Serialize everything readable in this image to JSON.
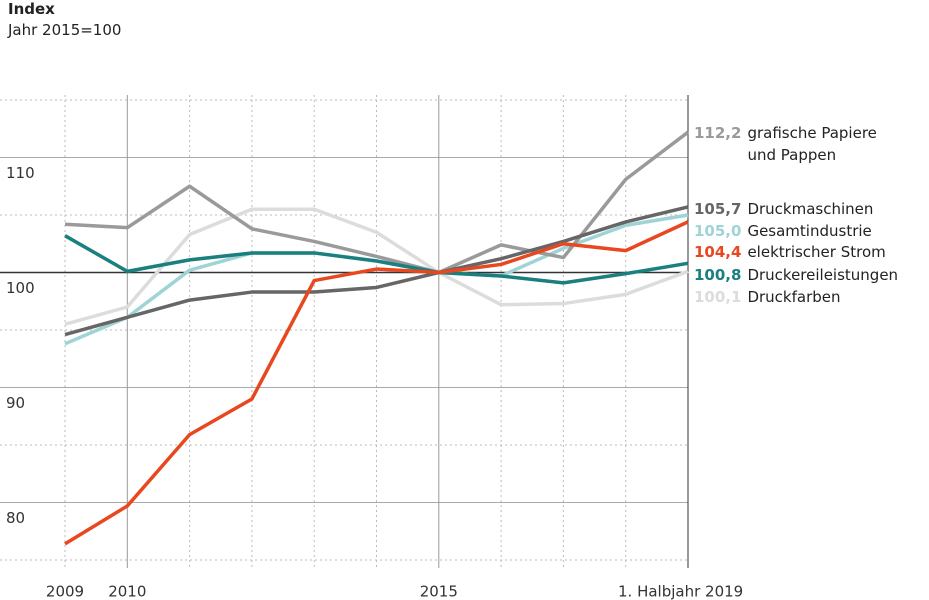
{
  "chart_data": {
    "type": "line",
    "title": "Index",
    "subtitle": "Jahr 2015=100",
    "categories": [
      "2009",
      "2010",
      null,
      null,
      null,
      null,
      "2015",
      null,
      null,
      null,
      "1. Halbjahr 2019"
    ],
    "ylim": [
      75,
      115
    ],
    "yticks": [
      80,
      90,
      100,
      110
    ],
    "yminor": [
      75,
      85,
      95,
      105,
      115
    ],
    "reference": 100,
    "series": [
      {
        "name": "grafische Papiere und Pappen",
        "color": "#9a9a9a",
        "values": [
          104.2,
          103.9,
          107.5,
          103.8,
          102.7,
          101.4,
          100,
          102.4,
          101.3,
          108.1,
          112.2
        ],
        "value_labels": [
          null,
          null,
          null,
          null,
          null,
          null,
          null,
          null,
          null,
          null,
          "112,2"
        ]
      },
      {
        "name": "Druckmaschinen",
        "color": "#666666",
        "values": [
          94.6,
          96.1,
          97.6,
          98.3,
          98.3,
          98.7,
          100,
          101.2,
          102.7,
          104.4,
          105.7
        ],
        "value_labels": [
          null,
          null,
          null,
          null,
          null,
          null,
          null,
          null,
          null,
          null,
          "105,7"
        ]
      },
      {
        "name": "Gesamtindustrie",
        "color": "#9fd3d6",
        "values": [
          93.8,
          96.1,
          100.2,
          101.7,
          101.7,
          101.0,
          100,
          99.7,
          102.1,
          104.1,
          105.0
        ],
        "value_labels": [
          null,
          null,
          null,
          null,
          null,
          null,
          null,
          null,
          null,
          null,
          "105,0"
        ]
      },
      {
        "name": "elektrischer Strom",
        "color": "#e8471f",
        "values": [
          76.4,
          79.7,
          85.9,
          89.0,
          99.3,
          100.3,
          100,
          100.7,
          102.5,
          101.9,
          104.4
        ],
        "value_labels": [
          null,
          null,
          null,
          null,
          null,
          null,
          null,
          null,
          null,
          null,
          "104,4"
        ]
      },
      {
        "name": "Druckereileistungen",
        "color": "#1a7f7f",
        "values": [
          103.2,
          100.1,
          101.1,
          101.7,
          101.7,
          101.0,
          100,
          99.7,
          99.1,
          99.9,
          100.8
        ],
        "value_labels": [
          null,
          null,
          null,
          null,
          null,
          null,
          null,
          null,
          null,
          null,
          "100,8"
        ]
      },
      {
        "name": "Druckfarben",
        "color": "#dcdcdc",
        "values": [
          95.5,
          97.0,
          103.3,
          105.5,
          105.5,
          103.5,
          100,
          97.2,
          97.3,
          98.1,
          100.1
        ],
        "value_labels": [
          null,
          null,
          null,
          null,
          null,
          null,
          null,
          null,
          null,
          null,
          "100,1"
        ]
      }
    ]
  }
}
